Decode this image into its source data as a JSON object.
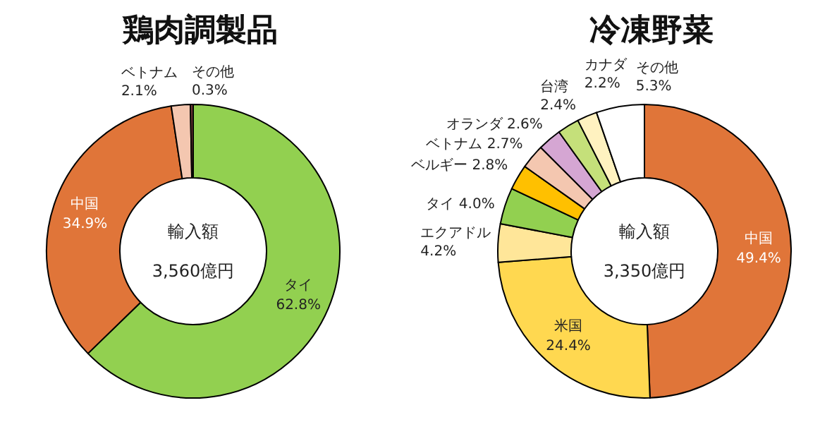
{
  "chart_data": [
    {
      "type": "donut",
      "title": "鶏肉調製品",
      "categories": [
        "タイ",
        "中国",
        "ベトナム",
        "その他"
      ],
      "values": [
        62.8,
        34.9,
        2.1,
        0.3
      ],
      "value_labels": [
        "62.8%",
        "34.9%",
        "2.1%",
        "0.3%"
      ],
      "colors": [
        "#92d050",
        "#e07539",
        "#f4c7b0",
        "#7f3f3f"
      ],
      "annotations": [
        "輸入額",
        "3,560億円"
      ],
      "legend": false
    },
    {
      "type": "donut",
      "title": "冷凍野菜",
      "categories": [
        "中国",
        "米国",
        "エクアドル",
        "タイ",
        "ベルギー",
        "ベトナム",
        "オランダ",
        "台湾",
        "カナダ",
        "その他"
      ],
      "values": [
        49.4,
        24.4,
        4.2,
        4.0,
        2.8,
        2.7,
        2.6,
        2.4,
        2.2,
        5.3
      ],
      "value_labels": [
        "49.4%",
        "24.4%",
        "4.2%",
        "4.0%",
        "2.8%",
        "2.7%",
        "2.6%",
        "2.4%",
        "2.2%",
        "5.3%"
      ],
      "colors": [
        "#e07539",
        "#ffd850",
        "#ffe699",
        "#92d050",
        "#ffc000",
        "#f4c7b0",
        "#d5a6d3",
        "#c5e07a",
        "#fff2c0",
        "#ffffff"
      ],
      "annotations": [
        "輸入額",
        "3,350億円"
      ],
      "legend": false
    }
  ]
}
